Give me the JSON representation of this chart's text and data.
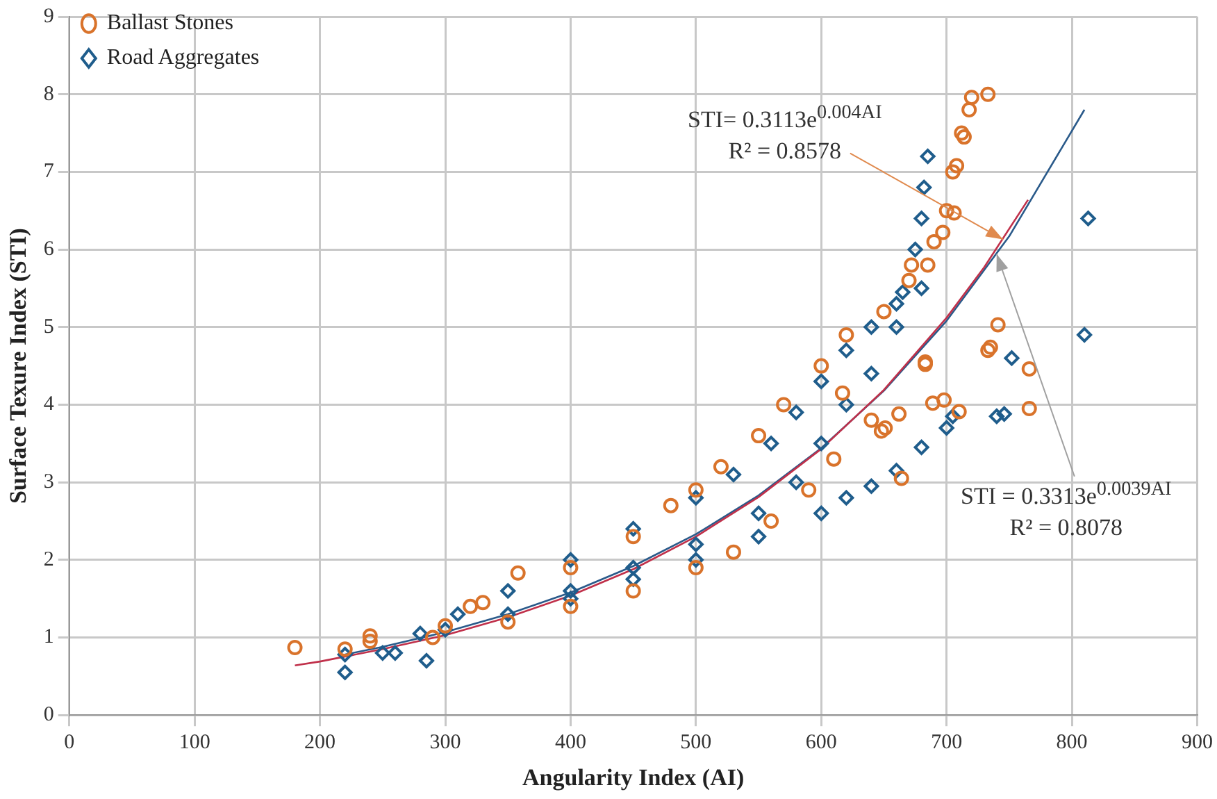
{
  "chart_data": {
    "type": "scatter",
    "xlabel": "Angularity Index (AI)",
    "ylabel": "Surface Texure Index (STI)",
    "xlim": [
      0,
      900
    ],
    "xticks": [
      0,
      100,
      200,
      300,
      400,
      500,
      600,
      700,
      800,
      900
    ],
    "ylim": [
      0,
      9
    ],
    "yticks": [
      0,
      1,
      2,
      3,
      4,
      5,
      6,
      7,
      8,
      9
    ],
    "grid": true,
    "legend": "top left",
    "series": [
      {
        "name": "Ballast Stones",
        "color": "#d9732b",
        "marker": "circle",
        "x": [
          180,
          220,
          240,
          240,
          290,
          300,
          320,
          330,
          358,
          350,
          400,
          400,
          450,
          450,
          480,
          500,
          500,
          520,
          530,
          550,
          560,
          570,
          590,
          600,
          610,
          617,
          620,
          640,
          648,
          650,
          651,
          662,
          664,
          670,
          672,
          683,
          683,
          685,
          689,
          690,
          697,
          698,
          700,
          705,
          706,
          708,
          710,
          712,
          714,
          718,
          720,
          733,
          733,
          735,
          741,
          766,
          766
        ],
        "values": [
          0.87,
          0.85,
          0.95,
          1.02,
          1.0,
          1.15,
          1.4,
          1.45,
          1.83,
          1.2,
          1.9,
          1.4,
          2.3,
          1.6,
          2.7,
          2.9,
          1.9,
          3.2,
          2.1,
          3.6,
          2.5,
          4.0,
          2.9,
          4.5,
          3.3,
          4.15,
          4.9,
          3.8,
          3.66,
          5.2,
          3.7,
          3.88,
          3.05,
          5.6,
          5.8,
          4.52,
          4.55,
          5.8,
          4.02,
          6.1,
          6.22,
          4.06,
          6.5,
          7.0,
          6.47,
          7.08,
          3.91,
          7.5,
          7.45,
          7.8,
          7.96,
          8.0,
          4.7,
          4.74,
          5.03,
          4.46,
          3.95
        ]
      },
      {
        "name": "Road Aggregates",
        "color": "#1f5d8c",
        "marker": "diamond",
        "x": [
          220,
          220,
          250,
          260,
          285,
          280,
          300,
          310,
          350,
          400,
          450,
          500,
          530,
          560,
          580,
          600,
          620,
          640,
          660,
          665,
          675,
          680,
          682,
          685,
          400,
          450,
          500,
          550,
          580,
          600,
          620,
          640,
          660,
          680,
          350,
          400,
          450,
          500,
          550,
          600,
          620,
          640,
          660,
          680,
          700,
          705,
          740,
          746,
          752,
          810,
          813
        ],
        "values": [
          0.55,
          0.78,
          0.8,
          0.8,
          0.7,
          1.05,
          1.1,
          1.3,
          1.6,
          2.0,
          2.4,
          2.8,
          3.1,
          3.5,
          3.9,
          4.3,
          4.7,
          5.0,
          5.3,
          5.45,
          6.0,
          6.4,
          6.8,
          7.2,
          1.6,
          1.9,
          2.2,
          2.6,
          3.0,
          3.5,
          4.0,
          4.4,
          5.0,
          5.5,
          1.3,
          1.5,
          1.75,
          2.0,
          2.3,
          2.6,
          2.8,
          2.95,
          3.15,
          3.45,
          3.7,
          3.85,
          3.85,
          3.88,
          4.6,
          4.9,
          6.4
        ]
      },
      {
        "type": "line",
        "color": "#c0304a",
        "marker": "none",
        "line_style": "solid",
        "x": [
          180,
          200,
          250,
          300,
          350,
          400,
          450,
          500,
          550,
          600,
          650,
          700,
          730,
          765
        ],
        "values": [
          0.64,
          0.69,
          0.85,
          1.03,
          1.26,
          1.54,
          1.88,
          2.3,
          2.81,
          3.43,
          4.19,
          5.12,
          5.77,
          6.64
        ]
      },
      {
        "type": "line",
        "color": "#2a5a8a",
        "marker": "none",
        "line_style": "solid",
        "x": [
          220,
          250,
          300,
          350,
          400,
          450,
          500,
          550,
          600,
          650,
          700,
          750,
          810
        ],
        "values": [
          0.78,
          0.88,
          1.07,
          1.3,
          1.58,
          1.92,
          2.33,
          2.83,
          3.44,
          4.18,
          5.08,
          6.17,
          7.8
        ]
      }
    ],
    "annotations": [
      {
        "text": "STI= 0.3113e$^{0.004AI}$\nR² = 0.8578",
        "x": 745,
        "y": 6.13
      },
      {
        "text": "STI = 0.3313e$^{0.0039AI}$\nR² = 0.8078",
        "x": 740,
        "y": 5.94
      }
    ]
  }
}
